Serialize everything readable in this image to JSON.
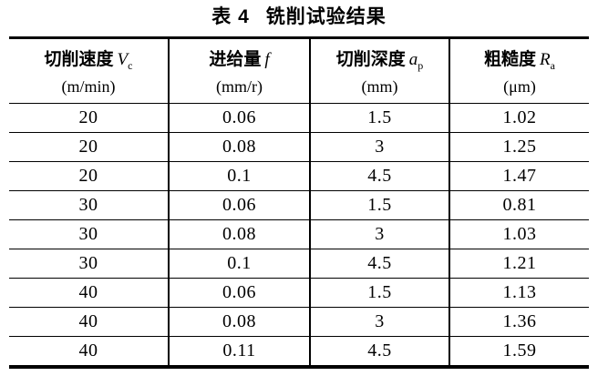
{
  "title": {
    "label": "表 4",
    "text": "铣削试验结果"
  },
  "table": {
    "columns": [
      {
        "name": "切削速度",
        "symbol": "V",
        "subscript": "c",
        "unit": "(m/min)"
      },
      {
        "name": "进给量",
        "symbol": "f",
        "subscript": "",
        "unit": "(mm/r)"
      },
      {
        "name": "切削深度",
        "symbol": "a",
        "subscript": "p",
        "unit": "(mm)"
      },
      {
        "name": "粗糙度",
        "symbol": "R",
        "subscript": "a",
        "unit": "(μm)"
      }
    ],
    "rows": [
      [
        "20",
        "0.06",
        "1.5",
        "1.02"
      ],
      [
        "20",
        "0.08",
        "3",
        "1.25"
      ],
      [
        "20",
        "0.1",
        "4.5",
        "1.47"
      ],
      [
        "30",
        "0.06",
        "1.5",
        "0.81"
      ],
      [
        "30",
        "0.08",
        "3",
        "1.03"
      ],
      [
        "30",
        "0.1",
        "4.5",
        "1.21"
      ],
      [
        "40",
        "0.06",
        "1.5",
        "1.13"
      ],
      [
        "40",
        "0.08",
        "3",
        "1.36"
      ],
      [
        "40",
        "0.11",
        "4.5",
        "1.59"
      ]
    ]
  },
  "colors": {
    "text": "#000000",
    "border": "#000000",
    "background": "#ffffff"
  }
}
